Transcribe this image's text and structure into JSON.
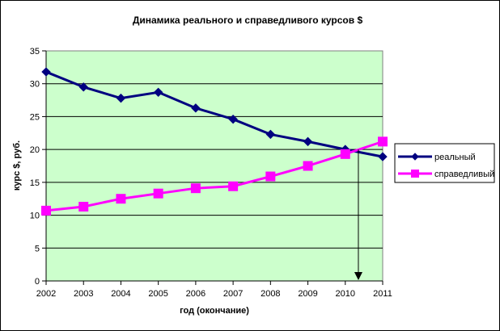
{
  "chart_data": {
    "type": "line",
    "title": "Динамика реального и справедливого курсов $",
    "xlabel": "год (окончание)",
    "ylabel": "курс $, руб.",
    "x": [
      "2002",
      "2003",
      "2004",
      "2005",
      "2006",
      "2007",
      "2008",
      "2009",
      "2010",
      "2011"
    ],
    "ylim": [
      0,
      35
    ],
    "yticks": [
      "0",
      "5",
      "10",
      "15",
      "20",
      "25",
      "30",
      "35"
    ],
    "grid": "horizontal",
    "legend_position": "right",
    "background_color": "#ccffcc",
    "series": [
      {
        "name": "реальный",
        "color": "#000080",
        "marker": "diamond",
        "values": [
          31.8,
          29.5,
          27.8,
          28.7,
          26.3,
          24.6,
          22.3,
          21.2,
          20.0,
          18.9
        ]
      },
      {
        "name": "справедливый",
        "color": "#ff00ff",
        "marker": "square",
        "values": [
          10.7,
          11.3,
          12.5,
          13.3,
          14.1,
          14.4,
          15.9,
          17.5,
          19.3,
          21.2
        ]
      }
    ],
    "annotation": {
      "type": "arrow-down",
      "x": 2010.35,
      "y_from": 20.0,
      "y_to": 0
    }
  }
}
